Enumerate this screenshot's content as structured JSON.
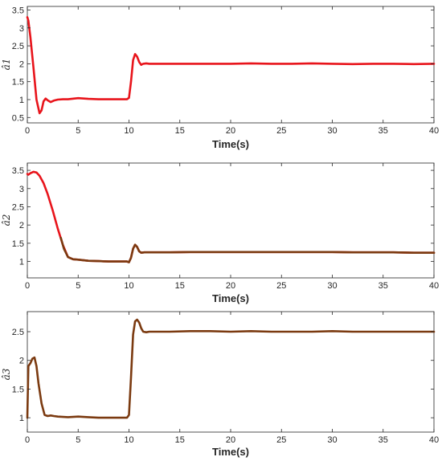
{
  "chart_data": [
    {
      "type": "line",
      "ylabel": "â1",
      "xlabel": "Time(s)",
      "xlim": [
        0,
        40
      ],
      "ylim": [
        0.35,
        3.6
      ],
      "xticks": [
        0,
        5,
        10,
        15,
        20,
        25,
        30,
        35,
        40
      ],
      "yticks": [
        0.5,
        1,
        1.5,
        2,
        2.5,
        3,
        3.5
      ],
      "ytick_labels": [
        "0.5",
        "1",
        "1.5",
        "2",
        "2.5",
        "3",
        "3.5"
      ],
      "grid": false,
      "series": [
        {
          "color": "#e8141b",
          "x": [
            0,
            0.1,
            0.3,
            0.6,
            0.9,
            1.2,
            1.4,
            1.6,
            1.8,
            2.0,
            2.3,
            2.6,
            3,
            3.5,
            4,
            5,
            6,
            7,
            8,
            9,
            9.8,
            10.0,
            10.2,
            10.4,
            10.6,
            10.8,
            11.0,
            11.2,
            11.4,
            11.7,
            12,
            14,
            16,
            18,
            20,
            22,
            24,
            26,
            28,
            30,
            32,
            34,
            36,
            38,
            40
          ],
          "y": [
            3.3,
            3.2,
            2.75,
            1.9,
            1.0,
            0.62,
            0.7,
            0.95,
            1.03,
            0.98,
            0.93,
            0.97,
            1.0,
            1.01,
            1.01,
            1.04,
            1.02,
            1.01,
            1.01,
            1.01,
            1.01,
            1.05,
            1.5,
            2.1,
            2.27,
            2.2,
            2.05,
            1.97,
            2.0,
            2.01,
            2.0,
            2.0,
            2.0,
            2.0,
            2.0,
            2.01,
            2.0,
            2.0,
            2.01,
            2.0,
            1.99,
            2.0,
            2.0,
            1.99,
            2.0
          ]
        }
      ]
    },
    {
      "type": "line",
      "ylabel": "â2",
      "xlabel": "Time(s)",
      "xlim": [
        0,
        40
      ],
      "ylim": [
        0.55,
        3.7
      ],
      "xticks": [
        0,
        5,
        10,
        15,
        20,
        25,
        30,
        35,
        40
      ],
      "yticks": [
        1,
        1.5,
        2,
        2.5,
        3,
        3.5
      ],
      "ytick_labels": [
        "1",
        "1.5",
        "2",
        "2.5",
        "3",
        "3.5"
      ],
      "grid": false,
      "series": [
        {
          "color": "#e8141b",
          "x": [
            0,
            0.1,
            0.3,
            0.6,
            0.9,
            1.2,
            1.6,
            2.0,
            2.5,
            3.0,
            3.5,
            4.0,
            4.5,
            5,
            6,
            7,
            8,
            9,
            9.8,
            10.0,
            10.2,
            10.4,
            10.6,
            10.8,
            11.0,
            11.2,
            11.5,
            12,
            14,
            16,
            18,
            20,
            22,
            24,
            26,
            28,
            30,
            32,
            34,
            36,
            38,
            40
          ],
          "y": [
            3.4,
            3.38,
            3.42,
            3.46,
            3.44,
            3.35,
            3.15,
            2.85,
            2.4,
            1.9,
            1.45,
            1.12,
            1.06,
            1.05,
            1.02,
            1.01,
            1.0,
            1.0,
            1.0,
            0.98,
            1.1,
            1.35,
            1.46,
            1.4,
            1.28,
            1.24,
            1.25,
            1.25,
            1.25,
            1.26,
            1.26,
            1.26,
            1.26,
            1.26,
            1.26,
            1.26,
            1.26,
            1.25,
            1.25,
            1.25,
            1.24,
            1.24
          ]
        },
        {
          "color": "#7b3a10",
          "x": [
            3.3,
            3.6,
            4.0,
            4.5,
            5,
            6,
            7,
            8,
            9,
            9.8,
            10.0,
            10.2,
            10.4,
            10.6,
            10.8,
            11.0,
            11.2,
            11.5,
            12,
            14,
            16,
            18,
            20,
            22,
            24,
            26,
            28,
            30,
            32,
            34,
            36,
            38,
            40
          ],
          "y": [
            1.65,
            1.35,
            1.12,
            1.06,
            1.05,
            1.02,
            1.01,
            1.0,
            1.0,
            1.0,
            0.98,
            1.1,
            1.35,
            1.46,
            1.4,
            1.28,
            1.24,
            1.25,
            1.25,
            1.25,
            1.26,
            1.26,
            1.26,
            1.26,
            1.26,
            1.26,
            1.26,
            1.26,
            1.25,
            1.25,
            1.25,
            1.24,
            1.24
          ]
        }
      ]
    },
    {
      "type": "line",
      "ylabel": "â3",
      "xlabel": "Time(s)",
      "xlim": [
        0,
        40
      ],
      "ylim": [
        0.75,
        2.85
      ],
      "xticks": [
        0,
        5,
        10,
        15,
        20,
        25,
        30,
        35,
        40
      ],
      "yticks": [
        1,
        1.5,
        2,
        2.5
      ],
      "ytick_labels": [
        "1",
        "1.5",
        "2",
        "2.5"
      ],
      "grid": false,
      "series": [
        {
          "color": "#7b3a10",
          "x": [
            0,
            0.1,
            0.3,
            0.5,
            0.7,
            0.9,
            1.1,
            1.4,
            1.7,
            2.0,
            2.3,
            2.6,
            3,
            4,
            5,
            6,
            7,
            8,
            9,
            9.8,
            10.0,
            10.2,
            10.4,
            10.6,
            10.8,
            11.0,
            11.2,
            11.4,
            11.7,
            12,
            14,
            16,
            18,
            20,
            22,
            24,
            26,
            28,
            30,
            32,
            34,
            36,
            38,
            40
          ],
          "y": [
            1.0,
            1.9,
            1.95,
            2.03,
            2.05,
            1.9,
            1.6,
            1.25,
            1.05,
            1.03,
            1.04,
            1.03,
            1.02,
            1.01,
            1.02,
            1.01,
            1.0,
            1.0,
            1.0,
            1.0,
            1.05,
            1.7,
            2.45,
            2.68,
            2.71,
            2.66,
            2.56,
            2.5,
            2.49,
            2.5,
            2.5,
            2.51,
            2.51,
            2.5,
            2.51,
            2.5,
            2.5,
            2.5,
            2.51,
            2.5,
            2.5,
            2.5,
            2.5,
            2.5
          ]
        }
      ]
    }
  ]
}
